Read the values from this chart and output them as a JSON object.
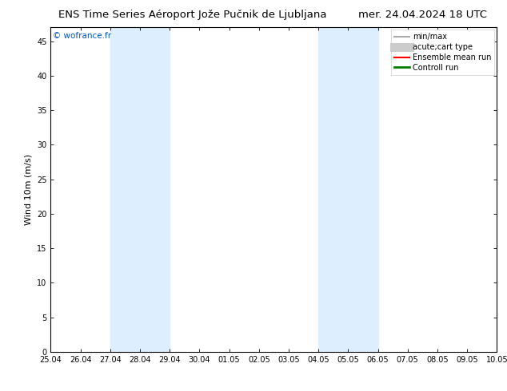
{
  "title_left": "ENS Time Series Aéroport Jože Pučnik de Ljubljana",
  "title_right": "mer. 24.04.2024 18 UTC",
  "ylabel": "Wind 10m (m/s)",
  "watermark": "© wofrance.fr",
  "ylim": [
    0,
    47
  ],
  "yticks": [
    0,
    5,
    10,
    15,
    20,
    25,
    30,
    35,
    40,
    45
  ],
  "xtick_labels": [
    "25.04",
    "26.04",
    "27.04",
    "28.04",
    "29.04",
    "30.04",
    "01.05",
    "02.05",
    "03.05",
    "04.05",
    "05.05",
    "06.05",
    "07.05",
    "08.05",
    "09.05",
    "10.05"
  ],
  "bg_color": "#ffffff",
  "plot_bg_color": "#ffffff",
  "shaded_regions": [
    {
      "x_start_label": "27.04",
      "x_end_label": "29.04",
      "color": "#ddeeff"
    },
    {
      "x_start_label": "04.05",
      "x_end_label": "06.05",
      "color": "#ddeeff"
    }
  ],
  "legend_entries": [
    {
      "label": "min/max",
      "color": "#aaaaaa",
      "lw": 1.5
    },
    {
      "label": "acute;cart type",
      "color": "#cccccc",
      "lw": 8
    },
    {
      "label": "Ensemble mean run",
      "color": "#ff0000",
      "lw": 1.5
    },
    {
      "label": "Controll run",
      "color": "#008000",
      "lw": 2
    }
  ],
  "title_fontsize": 9.5,
  "tick_fontsize": 7,
  "ylabel_fontsize": 8,
  "watermark_fontsize": 7.5,
  "watermark_color": "#0055cc",
  "spine_color": "#000000",
  "legend_fontsize": 7
}
